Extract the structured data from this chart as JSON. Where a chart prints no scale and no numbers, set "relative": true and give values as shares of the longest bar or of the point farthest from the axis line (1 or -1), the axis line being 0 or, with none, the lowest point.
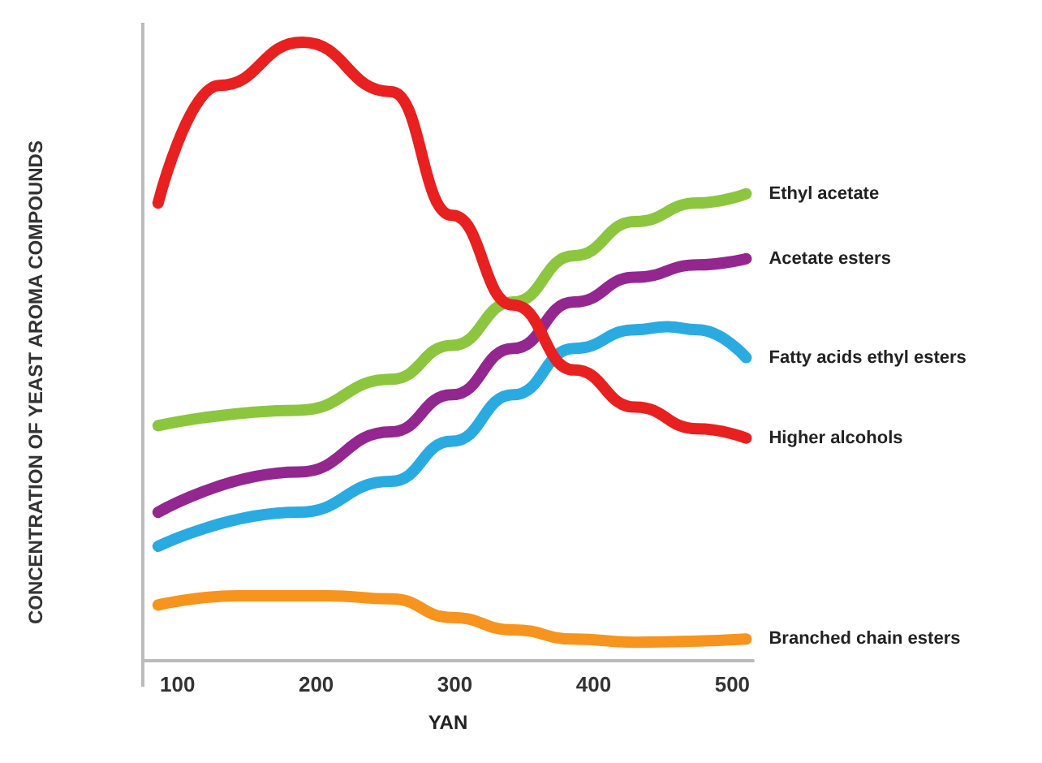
{
  "chart_data": {
    "type": "line",
    "relative": true,
    "xlabel": "YAN",
    "ylabel": "CONCENTRATION OF YEAST AROMA COMPOUNDS",
    "xlim": [
      75,
      515
    ],
    "xticks": [
      100,
      200,
      300,
      400,
      500
    ],
    "grid": false,
    "legend": false,
    "marker": "none",
    "line_style": "solid",
    "series": [
      {
        "name": "Ethyl acetate",
        "color": "#8cc63f",
        "x": [
          86,
          187,
          254,
          298,
          342,
          386,
          430,
          475,
          510
        ],
        "values": [
          0.38,
          0.405,
          0.455,
          0.51,
          0.58,
          0.655,
          0.71,
          0.74,
          0.755
        ]
      },
      {
        "name": "Acetate esters",
        "color": "#93278f",
        "x": [
          86,
          187,
          254,
          298,
          342,
          386,
          430,
          475,
          510
        ],
        "values": [
          0.24,
          0.305,
          0.37,
          0.43,
          0.505,
          0.58,
          0.62,
          0.64,
          0.65
        ]
      },
      {
        "name": "Fatty acids ethyl esters",
        "color": "#29abe2",
        "x": [
          86,
          187,
          254,
          298,
          342,
          386,
          430,
          453,
          475,
          510
        ],
        "values": [
          0.185,
          0.24,
          0.29,
          0.355,
          0.43,
          0.505,
          0.535,
          0.54,
          0.535,
          0.49
        ]
      },
      {
        "name": "Higher alcohols",
        "color": "#e8201f",
        "x": [
          86,
          130,
          190,
          254,
          298,
          342,
          386,
          430,
          475,
          510
        ],
        "values": [
          0.74,
          0.93,
          1,
          0.92,
          0.72,
          0.575,
          0.47,
          0.41,
          0.375,
          0.36
        ]
      },
      {
        "name": "Branched chain esters",
        "color": "#f7941d",
        "x": [
          86,
          143,
          209,
          254,
          298,
          342,
          386,
          430,
          510
        ],
        "values": [
          0.09,
          0.105,
          0.105,
          0.1,
          0.07,
          0.05,
          0.035,
          0.03,
          0.035
        ]
      }
    ]
  }
}
